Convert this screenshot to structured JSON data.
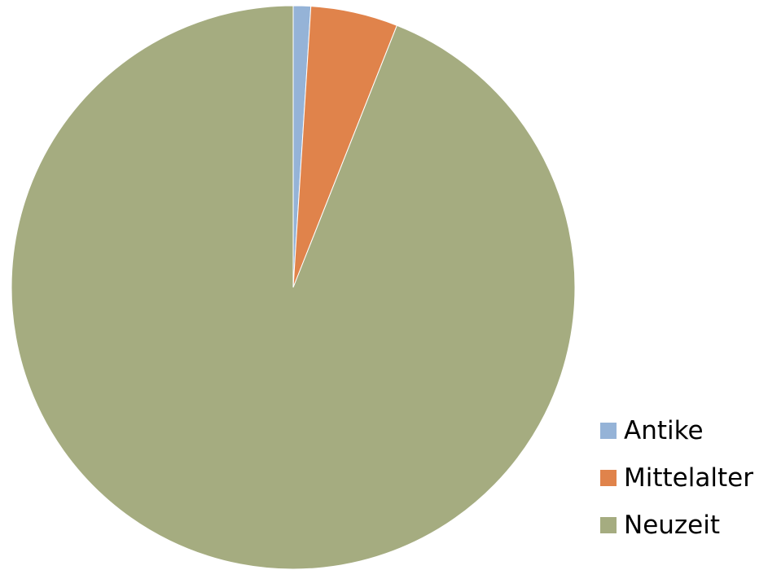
{
  "chart_data": {
    "type": "pie",
    "title": "",
    "categories": [
      "Antike",
      "Mittelalter",
      "Neuzeit"
    ],
    "values": [
      1,
      5,
      94
    ],
    "colors": [
      "#95b3d7",
      "#e0834b",
      "#a5ac80"
    ],
    "start_angle_deg": 0,
    "direction": "clockwise",
    "legend_position": "right-bottom"
  },
  "legend": {
    "items": [
      {
        "label": "Antike",
        "color": "#95b3d7"
      },
      {
        "label": "Mittelalter",
        "color": "#e0834b"
      },
      {
        "label": "Neuzeit",
        "color": "#a5ac80"
      }
    ]
  }
}
